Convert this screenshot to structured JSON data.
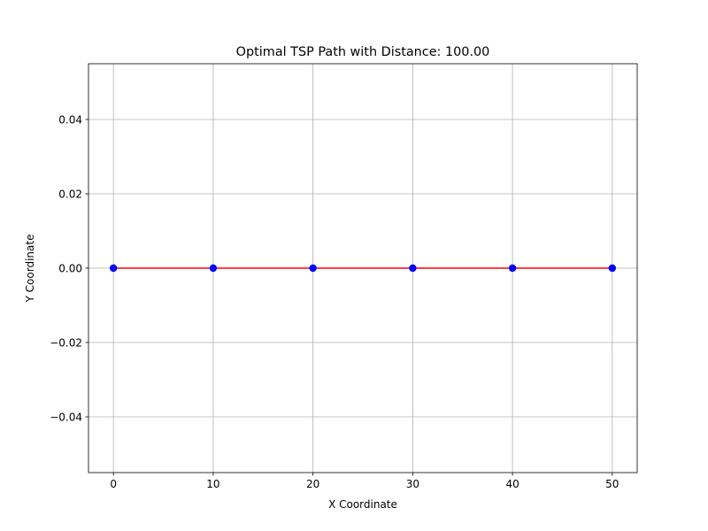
{
  "chart_data": {
    "type": "line",
    "title": "Optimal TSP Path with Distance: 100.00",
    "xlabel": "X Coordinate",
    "ylabel": "Y Coordinate",
    "xlim": [
      -2.5,
      52.5
    ],
    "ylim": [
      -0.055,
      0.055
    ],
    "grid": true,
    "xticks": [
      0,
      10,
      20,
      30,
      40,
      50
    ],
    "yticks": [
      -0.04,
      -0.02,
      0.0,
      0.02,
      0.04
    ],
    "xtick_labels": [
      "0",
      "10",
      "20",
      "30",
      "40",
      "50"
    ],
    "ytick_labels": [
      "−0.04",
      "−0.02",
      "0.00",
      "0.02",
      "0.04"
    ],
    "points": [
      {
        "x": 0,
        "y": 0
      },
      {
        "x": 10,
        "y": 0
      },
      {
        "x": 20,
        "y": 0
      },
      {
        "x": 30,
        "y": 0
      },
      {
        "x": 40,
        "y": 0
      },
      {
        "x": 50,
        "y": 0
      }
    ],
    "path": [
      {
        "x": 0,
        "y": 0
      },
      {
        "x": 10,
        "y": 0
      },
      {
        "x": 20,
        "y": 0
      },
      {
        "x": 30,
        "y": 0
      },
      {
        "x": 40,
        "y": 0
      },
      {
        "x": 50,
        "y": 0
      },
      {
        "x": 40,
        "y": 0
      },
      {
        "x": 30,
        "y": 0
      },
      {
        "x": 20,
        "y": 0
      },
      {
        "x": 10,
        "y": 0
      },
      {
        "x": 0,
        "y": 0
      }
    ],
    "colors": {
      "points": "#0000ff",
      "path": "#ff0000",
      "grid": "#b0b0b0",
      "axes": "#000000"
    }
  }
}
